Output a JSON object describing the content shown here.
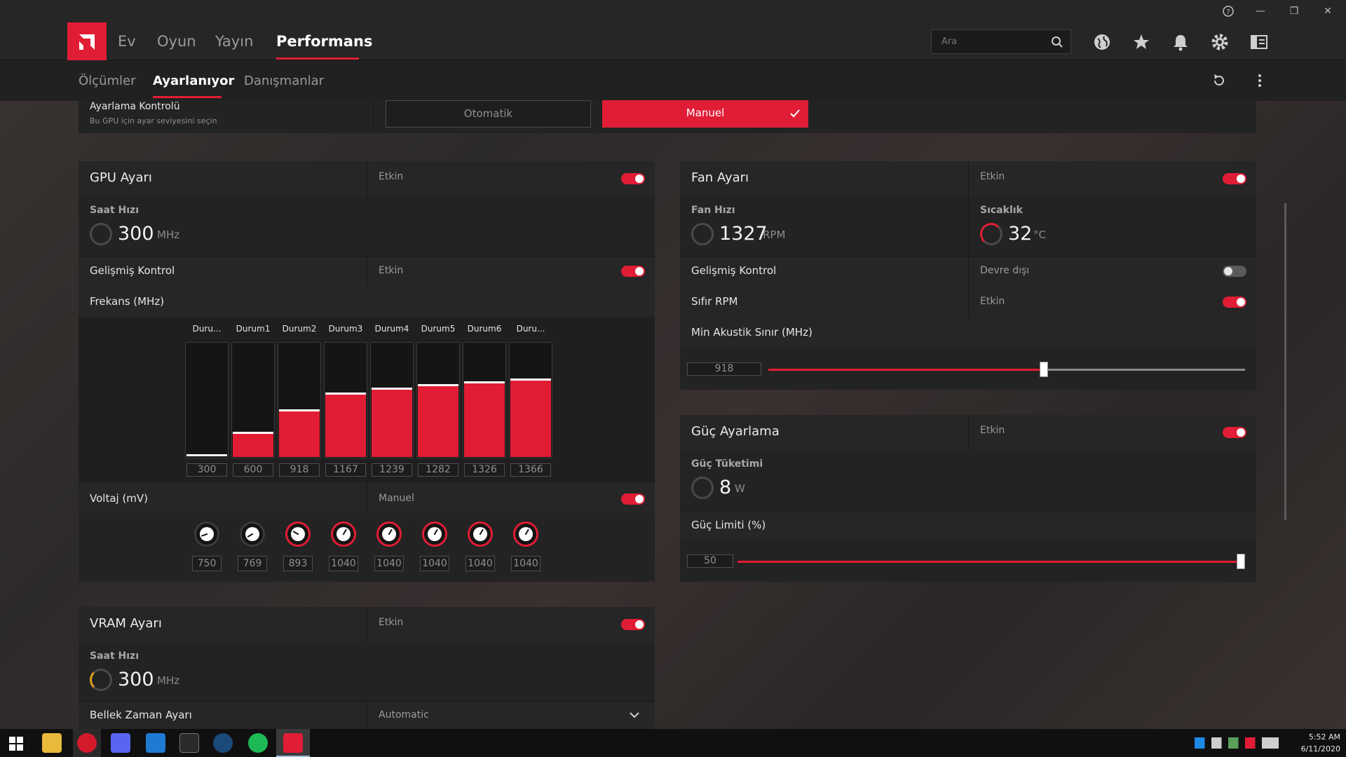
{
  "titlebar": {
    "help": "?",
    "minimize": "—",
    "restore": "❐",
    "close": "✕"
  },
  "nav": {
    "items": [
      {
        "label": "Ev"
      },
      {
        "label": "Oyun"
      },
      {
        "label": "Yayın"
      },
      {
        "label": "Performans",
        "active": true
      }
    ],
    "search_placeholder": "Ara"
  },
  "subnav": {
    "items": [
      {
        "label": "Ölçümler"
      },
      {
        "label": "Ayarlanıyor",
        "active": true
      },
      {
        "label": "Danışmanlar"
      }
    ]
  },
  "tuning_control": {
    "title": "Ayarlama Kontrolü",
    "subtitle": "Bu GPU için ayar seviyesini seçin",
    "auto_label": "Otomatik",
    "manual_label": "Manuel",
    "selected": "Manuel"
  },
  "gpu": {
    "title": "GPU Ayarı",
    "state": "Etkin",
    "enabled": true,
    "clock_label": "Saat Hızı",
    "clock_value": "300",
    "clock_unit": "MHz",
    "advanced_label": "Gelişmiş Kontrol",
    "advanced_state": "Etkin",
    "advanced_enabled": true,
    "freq_label": "Frekans (MHz)",
    "states": [
      "Duru...",
      "Durum1",
      "Durum2",
      "Durum3",
      "Durum4",
      "Durum5",
      "Durum6",
      "Duru..."
    ],
    "freq_values": [
      "300",
      "600",
      "918",
      "1167",
      "1239",
      "1282",
      "1326",
      "1366"
    ],
    "freq_levels": [
      300,
      600,
      918,
      1167,
      1239,
      1282,
      1326,
      1366
    ],
    "freq_max": 1600,
    "voltage_label": "Voltaj (mV)",
    "voltage_state": "Manuel",
    "voltage_enabled": true,
    "voltage_values": [
      "750",
      "769",
      "893",
      "1040",
      "1040",
      "1040",
      "1040",
      "1040"
    ]
  },
  "vram": {
    "title": "VRAM Ayarı",
    "state": "Etkin",
    "enabled": true,
    "clock_label": "Saat Hızı",
    "clock_value": "300",
    "clock_unit": "MHz",
    "timing_label": "Bellek Zaman Ayarı",
    "timing_value": "Automatic"
  },
  "fan": {
    "title": "Fan Ayarı",
    "state": "Etkin",
    "enabled": true,
    "speed_label": "Fan Hızı",
    "speed_value": "1327",
    "speed_unit": "RPM",
    "temp_label": "Sıcaklık",
    "temp_value": "32",
    "temp_unit": "°C",
    "advanced_label": "Gelişmiş Kontrol",
    "advanced_state": "Devre dışı",
    "advanced_enabled": false,
    "zero_rpm_label": "Sıfır RPM",
    "zero_rpm_state": "Etkin",
    "zero_rpm_enabled": true,
    "min_acoustic_label": "Min Akustik Sınır (MHz)",
    "min_acoustic_value": "918",
    "min_acoustic_fraction": 0.58
  },
  "power": {
    "title": "Güç Ayarlama",
    "state": "Etkin",
    "enabled": true,
    "consumption_label": "Güç Tüketimi",
    "consumption_value": "8",
    "consumption_unit": "W",
    "limit_label": "Güç Limiti (%)",
    "limit_value": "50",
    "limit_fraction": 1.0
  },
  "taskbar": {
    "time": "5:52 AM",
    "date": "6/11/2020"
  },
  "colors": {
    "accent": "#e01d35",
    "panel": "#232323",
    "background": "#2d2a2a"
  }
}
